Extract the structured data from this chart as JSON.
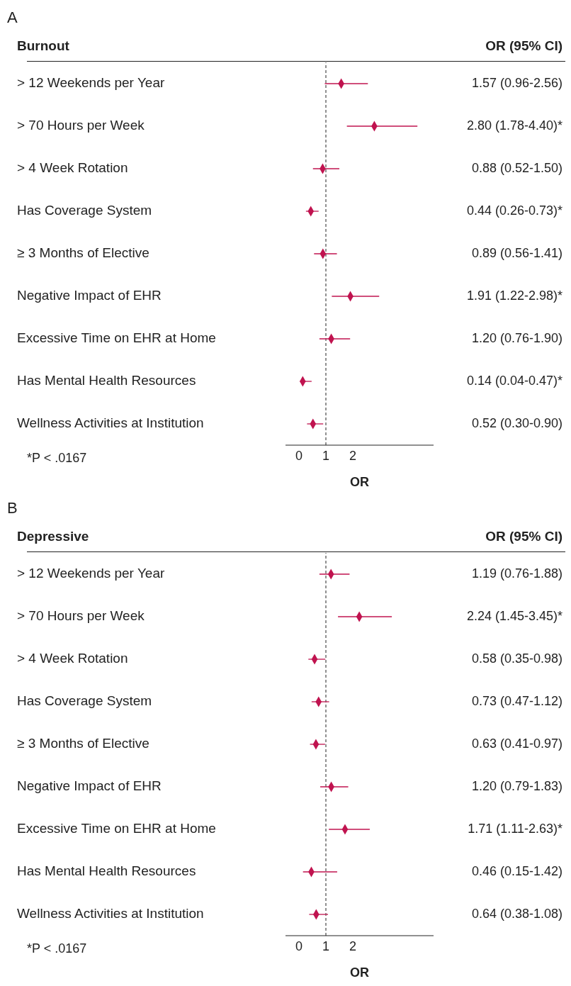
{
  "chart_data": [
    {
      "type": "scatter",
      "orientation": "horizontal",
      "title": "A",
      "subtitle": "Burnout",
      "xlabel": "OR",
      "marker": "diamond",
      "color": "#c0134f",
      "categories": [
        "> 12 Weekends per Year",
        "> 70 Hours per Week",
        "> 4 Week Rotation",
        "Has Coverage System",
        "≥ 3 Months of Elective",
        "Negative Impact of EHR",
        "Excessive Time on EHR at Home",
        "Has Mental Health Resources",
        "Wellness Activities at Institution"
      ],
      "values": [
        1.57,
        2.8,
        0.88,
        0.44,
        0.89,
        1.91,
        1.2,
        0.14,
        0.52
      ],
      "errors": [
        [
          0.96,
          2.56
        ],
        [
          1.78,
          4.4
        ],
        [
          0.52,
          1.5
        ],
        [
          0.26,
          0.73
        ],
        [
          0.56,
          1.41
        ],
        [
          1.22,
          2.98
        ],
        [
          0.76,
          1.9
        ],
        [
          0.04,
          0.47
        ],
        [
          0.3,
          0.9
        ]
      ],
      "value_labels": [
        "1.57 (0.96-2.56)",
        "2.80 (1.78-4.40)*",
        "0.88 (0.52-1.50)",
        "0.44 (0.26-0.73)*",
        "0.89 (0.56-1.41)",
        "1.91 (1.22-2.98)*",
        "1.20 (0.76-1.90)",
        "0.14 (0.04-0.47)*",
        "0.52 (0.30-0.90)"
      ],
      "xlim": [
        -0.5,
        5
      ],
      "xticks": [
        0,
        1,
        2
      ],
      "ref_lines": [
        {
          "axis": "x",
          "value": 1,
          "line_style": "dashed",
          "color": "#222222"
        }
      ],
      "annotations": [
        "OR (95% CI)",
        "*P < .0167"
      ]
    },
    {
      "type": "scatter",
      "orientation": "horizontal",
      "title": "B",
      "subtitle": "Depressive",
      "xlabel": "OR",
      "marker": "diamond",
      "color": "#c0134f",
      "categories": [
        "> 12 Weekends per Year",
        "> 70 Hours per Week",
        "> 4 Week Rotation",
        "Has Coverage System",
        "≥ 3 Months of Elective",
        "Negative Impact of EHR",
        "Excessive Time on EHR at Home",
        "Has Mental Health Resources",
        "Wellness Activities at Institution"
      ],
      "values": [
        1.19,
        2.24,
        0.58,
        0.73,
        0.63,
        1.2,
        1.71,
        0.46,
        0.64
      ],
      "errors": [
        [
          0.76,
          1.88
        ],
        [
          1.45,
          3.45
        ],
        [
          0.35,
          0.98
        ],
        [
          0.47,
          1.12
        ],
        [
          0.41,
          0.97
        ],
        [
          0.79,
          1.83
        ],
        [
          1.11,
          2.63
        ],
        [
          0.15,
          1.42
        ],
        [
          0.38,
          1.08
        ]
      ],
      "value_labels": [
        "1.19 (0.76-1.88)",
        "2.24 (1.45-3.45)*",
        "0.58 (0.35-0.98)",
        "0.73 (0.47-1.12)",
        "0.63 (0.41-0.97)",
        "1.20 (0.79-1.83)",
        "1.71 (1.11-2.63)*",
        "0.46 (0.15-1.42)",
        "0.64 (0.38-1.08)"
      ],
      "xlim": [
        -0.5,
        5
      ],
      "xticks": [
        0,
        1,
        2
      ],
      "ref_lines": [
        {
          "axis": "x",
          "value": 1,
          "line_style": "dashed",
          "color": "#222222"
        }
      ],
      "annotations": [
        "OR (95% CI)",
        "*P < .0167"
      ]
    }
  ]
}
